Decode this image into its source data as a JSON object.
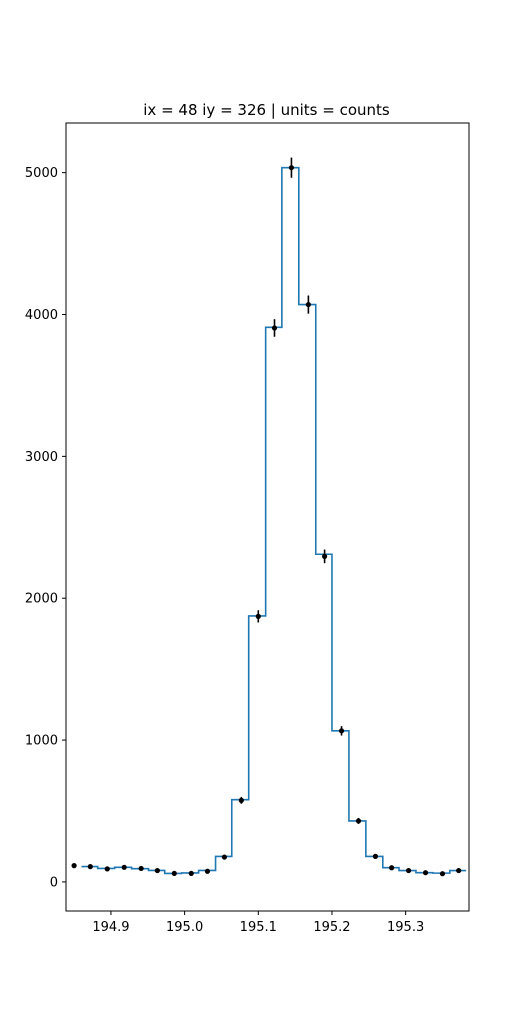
{
  "chart_data": {
    "type": "line",
    "title": "ix = 48 iy = 326 | units = counts",
    "xlabel": "",
    "ylabel": "",
    "xlim": [
      194.839,
      195.386
    ],
    "ylim": [
      -205,
      5350
    ],
    "grid": false,
    "legend": "none",
    "xticks": [
      194.9,
      195.0,
      195.1,
      195.2,
      195.3
    ],
    "xtick_labels": [
      "194.9",
      "195.0",
      "195.1",
      "195.2",
      "195.3"
    ],
    "yticks": [
      0,
      1000,
      2000,
      3000,
      4000,
      5000
    ],
    "ytick_labels": [
      "0",
      "1000",
      "2000",
      "3000",
      "4000",
      "5000"
    ],
    "series": [
      {
        "kind": "step",
        "color": "#1f77b4",
        "edges": [
          194.86,
          194.882,
          194.905,
          194.928,
          194.951,
          194.973,
          194.996,
          195.019,
          195.042,
          195.064,
          195.087,
          195.11,
          195.132,
          195.155,
          195.178,
          195.2,
          195.223,
          195.246,
          195.269,
          195.291,
          195.314,
          195.337,
          195.36,
          195.382
        ],
        "values": [
          108,
          95,
          103,
          93,
          81,
          60,
          63,
          81,
          180,
          580,
          1875,
          3910,
          5035,
          4070,
          2310,
          1065,
          430,
          180,
          100,
          80,
          65,
          62,
          80
        ]
      },
      {
        "kind": "points-with-errorbars",
        "color": "#000000",
        "x": [
          194.85,
          194.872,
          194.895,
          194.918,
          194.941,
          194.963,
          194.986,
          195.009,
          195.031,
          195.054,
          195.077,
          195.1,
          195.122,
          195.145,
          195.168,
          195.19,
          195.213,
          195.236,
          195.259,
          195.281,
          195.304,
          195.327,
          195.35,
          195.372
        ],
        "y": [
          115,
          108,
          92,
          103,
          95,
          80,
          60,
          60,
          75,
          175,
          575,
          1872,
          3905,
          5035,
          4070,
          2295,
          1065,
          430,
          180,
          100,
          80,
          65,
          58,
          80
        ],
        "yerr": [
          10,
          10,
          10,
          10,
          10,
          9,
          8,
          8,
          9,
          13,
          24,
          43,
          62,
          71,
          64,
          48,
          33,
          21,
          13,
          10,
          9,
          8,
          8,
          9
        ]
      }
    ]
  }
}
